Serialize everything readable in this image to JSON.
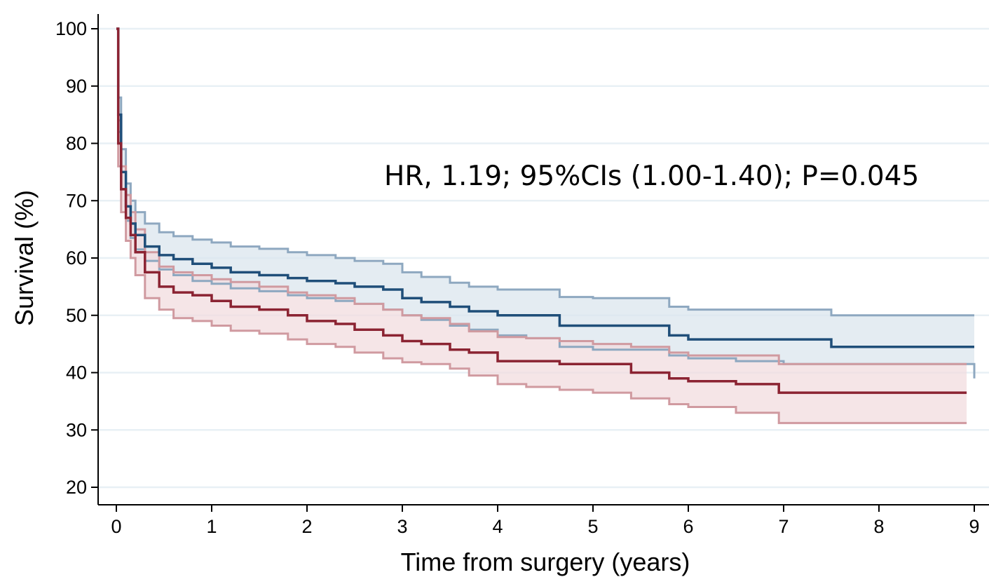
{
  "chart_data": {
    "type": "line",
    "title": "",
    "xlabel": "Time from surgery (years)",
    "ylabel": "Survival (%)",
    "xlim": [
      0,
      9
    ],
    "ylim": [
      20,
      100
    ],
    "x_ticks": [
      0,
      1,
      2,
      3,
      4,
      5,
      6,
      7,
      8,
      9
    ],
    "y_ticks": [
      20,
      30,
      40,
      50,
      60,
      70,
      80,
      90,
      100
    ],
    "grid": "horizontal",
    "step": true,
    "annotation": "HR, 1.19; 95%CIs (1.00-1.40); P=0.045",
    "series": [
      {
        "color": "#1f4e79",
        "ci_color": "#8ea8c0",
        "ci_fill": "#dbe5ee",
        "x": [
          0,
          0.02,
          0.05,
          0.1,
          0.15,
          0.2,
          0.3,
          0.45,
          0.6,
          0.8,
          1.0,
          1.2,
          1.5,
          1.8,
          2.0,
          2.3,
          2.5,
          2.8,
          3.0,
          3.2,
          3.5,
          3.7,
          4.0,
          4.3,
          4.65,
          5.0,
          5.4,
          5.8,
          6.0,
          6.5,
          7.0,
          7.5,
          8.0,
          9.0
        ],
        "y": [
          100,
          85,
          75,
          69,
          66,
          64,
          62,
          60.5,
          59.8,
          59,
          58.3,
          57.5,
          57,
          56.5,
          56,
          55.6,
          55,
          54.5,
          53,
          52.3,
          51.5,
          50.7,
          50,
          50,
          48.2,
          48.2,
          48.2,
          46.5,
          45.8,
          45.8,
          45.8,
          44.5,
          44.5,
          44.5
        ],
        "lower": [
          100,
          82,
          72,
          66.5,
          63.5,
          61.5,
          59.5,
          58,
          57,
          56,
          55.5,
          54.7,
          54.2,
          53.5,
          53,
          52.5,
          52,
          51,
          50,
          49.2,
          48.2,
          47.5,
          46.5,
          46,
          44.5,
          44,
          44,
          43,
          42.5,
          42,
          41.5,
          41.5,
          41.5,
          39
        ]
      },
      {
        "color": "#8b2332",
        "ci_color": "#d09aa0",
        "ci_fill": "#f1dcdf",
        "x": [
          0,
          0.02,
          0.05,
          0.1,
          0.15,
          0.2,
          0.3,
          0.45,
          0.6,
          0.8,
          1.0,
          1.2,
          1.5,
          1.8,
          2.0,
          2.3,
          2.5,
          2.8,
          3.0,
          3.2,
          3.5,
          3.7,
          4.0,
          4.3,
          4.65,
          5.0,
          5.4,
          5.8,
          6.0,
          6.5,
          6.95,
          7.5,
          8.0,
          8.92
        ],
        "y": [
          100,
          80,
          72,
          67,
          64,
          61,
          57.5,
          55,
          54,
          53.5,
          52.5,
          51.5,
          51,
          50,
          49,
          48.5,
          47.5,
          46.5,
          45.5,
          45,
          44,
          43.5,
          42,
          42,
          41.5,
          41.5,
          40,
          39,
          38.5,
          38,
          36.5,
          36.5,
          36.5,
          36.5
        ],
        "upper": [
          100,
          84,
          76,
          71,
          68,
          65,
          61,
          58.5,
          57.5,
          57,
          56.3,
          55.8,
          55,
          54,
          53.5,
          53,
          52,
          51,
          50,
          49.5,
          48.5,
          47.2,
          46.2,
          46,
          45.5,
          45,
          44.5,
          43.5,
          43,
          43,
          41.5,
          41.5,
          41.5,
          41.5
        ],
        "lower": [
          100,
          76,
          68,
          63,
          60,
          57,
          53,
          51,
          49.5,
          49,
          48.2,
          47.3,
          46.8,
          45.8,
          45,
          44.5,
          43.5,
          42.5,
          41.8,
          41.5,
          40.7,
          39.5,
          38,
          37.5,
          37,
          36.5,
          35.5,
          34.5,
          34,
          33,
          31.2,
          31.2,
          31.2,
          31.2
        ]
      }
    ],
    "series_upper_blue": [
      100,
      88,
      79,
      73,
      70,
      68,
      66,
      64.5,
      63.8,
      63.2,
      62.7,
      62,
      61.6,
      61,
      60.5,
      60,
      59.5,
      59,
      57.5,
      56.7,
      55.7,
      55,
      54.5,
      54.5,
      53.2,
      53,
      53,
      51.5,
      51,
      51,
      51,
      50,
      50,
      50
    ]
  }
}
